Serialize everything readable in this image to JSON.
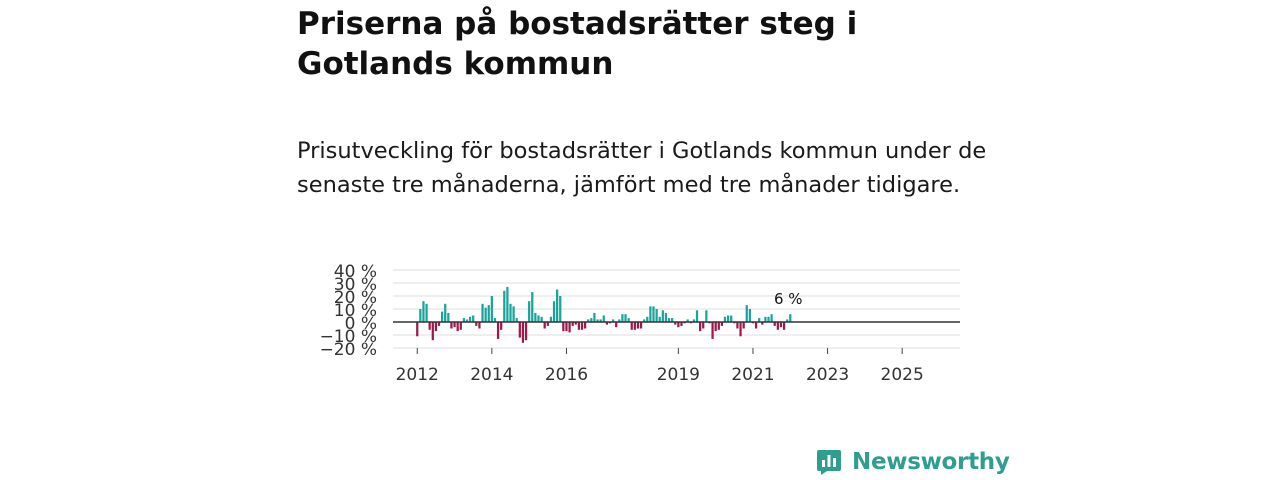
{
  "header": {
    "title": "Priserna på bostadsrätter steg i Gotlands kommun",
    "subtitle": "Prisutveckling för bostadsrätter i Gotlands kommun under de senaste tre månaderna, jämfört med tre månader tidigare."
  },
  "brand": {
    "name": "Newsworthy",
    "color": "#2e9e8f",
    "logo_icon": "bar-chart-speech-bubble-icon"
  },
  "colors": {
    "positive": "#1aa39a",
    "negative": "#a3164a",
    "zero_line": "#333333",
    "grid": "#dddddd"
  },
  "chart_data": {
    "type": "bar",
    "title": "Priserna på bostadsrätter steg i Gotlands kommun",
    "xlabel": "",
    "ylabel": "",
    "unit": "%",
    "ylim": [
      -20,
      40
    ],
    "y_ticks": [
      -20,
      -10,
      0,
      10,
      20,
      30,
      40
    ],
    "y_tick_labels": [
      "−20 %",
      "−10 %",
      "0 %",
      "10 %",
      "20 %",
      "30 %",
      "40 %"
    ],
    "x_ticks": [
      2012,
      2014,
      2016,
      2019,
      2021,
      2023,
      2025
    ],
    "x_tick_labels": [
      "2012",
      "2014",
      "2016",
      "2019",
      "2021",
      "2023",
      "2025"
    ],
    "x_range": [
      2011.35,
      2026.55
    ],
    "grid": true,
    "last_value_label": "6 %",
    "series": [
      {
        "name": "Prisutveckling",
        "start": 2012.0,
        "step_months": 1,
        "values": [
          -11,
          10,
          16,
          14,
          -6,
          -14,
          -7,
          -3,
          8,
          14,
          7,
          -5,
          -4,
          -7,
          -6,
          3,
          2,
          4,
          5,
          -3,
          -5,
          14,
          11,
          13,
          20,
          3,
          -13,
          -6,
          24,
          27,
          14,
          12,
          3,
          -12,
          -16,
          -14,
          16,
          23,
          7,
          5,
          4,
          -5,
          -3,
          4,
          16,
          25,
          20,
          -7,
          -7,
          -8,
          -3,
          -2,
          -6,
          -6,
          -5,
          2,
          3,
          7,
          2,
          2,
          5,
          -2,
          -1,
          2,
          -4,
          2,
          6,
          6,
          3,
          -6,
          -6,
          -5,
          -5,
          2,
          4,
          12,
          12,
          10,
          4,
          9,
          7,
          3,
          3,
          -2,
          -4,
          -3,
          -1,
          2,
          -1,
          2,
          9,
          -7,
          -5,
          9,
          -1,
          -13,
          -7,
          -6,
          -3,
          4,
          5,
          5,
          -1,
          -5,
          -11,
          -5,
          13,
          10,
          -1,
          -5,
          3,
          -2,
          4,
          4,
          6,
          -3,
          -6,
          -4,
          -6,
          2,
          6
        ]
      }
    ]
  }
}
